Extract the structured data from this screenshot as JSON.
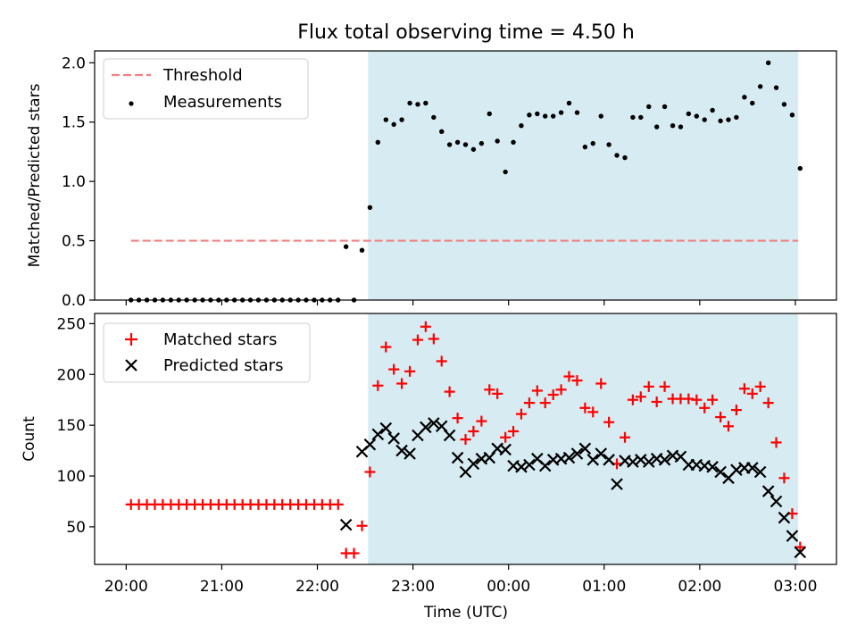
{
  "figure": {
    "title": "Flux total observing time = 4.50 h"
  },
  "chart_data": [
    {
      "type": "scatter",
      "ylabel": "Matched/Predicted stars",
      "xlabel": "",
      "xlim_hours": [
        19.67,
        27.43
      ],
      "ylim": [
        0,
        2.1
      ],
      "yticks": [
        0.0,
        0.5,
        1.0,
        1.5,
        2.0
      ],
      "ytick_labels": [
        "0.0",
        "0.5",
        "1.0",
        "1.5",
        "2.0"
      ],
      "shaded_span_hours": [
        22.53,
        27.03
      ],
      "shade_color": "#add8e6",
      "legend": {
        "placement": "upper-left",
        "entries": [
          {
            "label": "Threshold",
            "style": "dashed-line",
            "color": "#f08080"
          },
          {
            "label": "Measurements",
            "style": "dot",
            "color": "#000000"
          }
        ]
      },
      "threshold": {
        "name": "Threshold",
        "y": 0.5,
        "x_start": 20.05,
        "x_end": 27.03,
        "color": "#f08080"
      },
      "series": [
        {
          "name": "Measurements",
          "marker": "dot",
          "color": "#000000",
          "x": [
            20.05,
            20.133,
            20.217,
            20.3,
            20.383,
            20.467,
            20.55,
            20.633,
            20.717,
            20.8,
            20.883,
            20.967,
            21.05,
            21.133,
            21.217,
            21.3,
            21.383,
            21.467,
            21.55,
            21.633,
            21.717,
            21.8,
            21.883,
            21.967,
            22.05,
            22.133,
            22.217,
            22.3,
            22.383,
            22.467,
            22.55,
            22.633,
            22.717,
            22.8,
            22.883,
            22.967,
            23.05,
            23.133,
            23.217,
            23.3,
            23.383,
            23.467,
            23.55,
            23.633,
            23.717,
            23.8,
            23.883,
            23.967,
            24.05,
            24.133,
            24.217,
            24.3,
            24.383,
            24.467,
            24.55,
            24.633,
            24.717,
            24.8,
            24.883,
            24.967,
            25.05,
            25.133,
            25.217,
            25.3,
            25.383,
            25.467,
            25.55,
            25.633,
            25.717,
            25.8,
            25.883,
            25.967,
            26.05,
            26.133,
            26.217,
            26.3,
            26.383,
            26.467,
            26.55,
            26.633,
            26.717,
            26.8,
            26.883,
            26.967,
            27.05
          ],
          "y": [
            0.0,
            0.0,
            0.0,
            0.0,
            0.0,
            0.0,
            0.0,
            0.0,
            0.0,
            0.0,
            0.0,
            0.0,
            0.0,
            0.0,
            0.0,
            0.0,
            0.0,
            0.0,
            0.0,
            0.0,
            0.0,
            0.0,
            0.0,
            0.0,
            0.0,
            0.0,
            0.0,
            0.45,
            0.0,
            0.42,
            0.78,
            1.33,
            1.52,
            1.48,
            1.52,
            1.66,
            1.65,
            1.66,
            1.54,
            1.42,
            1.31,
            1.33,
            1.31,
            1.27,
            1.32,
            1.57,
            1.34,
            1.08,
            1.33,
            1.47,
            1.56,
            1.57,
            1.55,
            1.55,
            1.58,
            1.66,
            1.58,
            1.29,
            1.32,
            1.55,
            1.31,
            1.22,
            1.2,
            1.54,
            1.54,
            1.63,
            1.46,
            1.63,
            1.47,
            1.46,
            1.57,
            1.55,
            1.52,
            1.6,
            1.51,
            1.52,
            1.54,
            1.71,
            1.66,
            1.8,
            2.0,
            1.79,
            1.65,
            1.56,
            1.11
          ]
        }
      ]
    },
    {
      "type": "scatter",
      "ylabel": "Count",
      "xlabel": "Time (UTC)",
      "xlim_hours": [
        19.67,
        27.43
      ],
      "ylim": [
        13,
        260
      ],
      "yticks": [
        50,
        100,
        150,
        200,
        250
      ],
      "ytick_labels": [
        "50",
        "100",
        "150",
        "200",
        "250"
      ],
      "xticks_hours": [
        20,
        21,
        22,
        23,
        24,
        25,
        26,
        27
      ],
      "xtick_labels": [
        "20:00",
        "21:00",
        "22:00",
        "23:00",
        "00:00",
        "01:00",
        "02:00",
        "03:00"
      ],
      "shaded_span_hours": [
        22.53,
        27.03
      ],
      "shade_color": "#add8e6",
      "legend": {
        "placement": "upper-left",
        "entries": [
          {
            "label": "Matched stars",
            "style": "plus",
            "color": "#ff0000"
          },
          {
            "label": "Predicted stars",
            "style": "x",
            "color": "#000000"
          }
        ]
      },
      "series": [
        {
          "name": "Matched stars",
          "marker": "plus",
          "color": "#ff0000",
          "x": [
            20.05,
            20.133,
            20.217,
            20.3,
            20.383,
            20.467,
            20.55,
            20.633,
            20.717,
            20.8,
            20.883,
            20.967,
            21.05,
            21.133,
            21.217,
            21.3,
            21.383,
            21.467,
            21.55,
            21.633,
            21.717,
            21.8,
            21.883,
            21.967,
            22.05,
            22.133,
            22.217,
            22.3,
            22.383,
            22.467,
            22.55,
            22.633,
            22.717,
            22.8,
            22.883,
            22.967,
            23.05,
            23.133,
            23.217,
            23.3,
            23.383,
            23.467,
            23.55,
            23.633,
            23.717,
            23.8,
            23.883,
            23.967,
            24.05,
            24.133,
            24.217,
            24.3,
            24.383,
            24.467,
            24.55,
            24.633,
            24.717,
            24.8,
            24.883,
            24.967,
            25.05,
            25.133,
            25.217,
            25.3,
            25.383,
            25.467,
            25.55,
            25.633,
            25.717,
            25.8,
            25.883,
            25.967,
            26.05,
            26.133,
            26.217,
            26.3,
            26.383,
            26.467,
            26.55,
            26.633,
            26.717,
            26.8,
            26.883,
            26.967,
            27.05
          ],
          "y": [
            72,
            72,
            72,
            72,
            72,
            72,
            72,
            72,
            72,
            72,
            72,
            72,
            72,
            72,
            72,
            72,
            72,
            72,
            72,
            72,
            72,
            72,
            72,
            72,
            72,
            72,
            72,
            24,
            24,
            51,
            104,
            189,
            227,
            205,
            191,
            203,
            234,
            247,
            235,
            213,
            183,
            157,
            136,
            144,
            154,
            185,
            181,
            138,
            144,
            161,
            172,
            184,
            172,
            180,
            185,
            198,
            194,
            167,
            163,
            191,
            153,
            112,
            138,
            175,
            178,
            188,
            173,
            188,
            176,
            176,
            176,
            175,
            167,
            175,
            158,
            149,
            165,
            186,
            181,
            188,
            172,
            133,
            98,
            63,
            30
          ]
        },
        {
          "name": "Predicted stars",
          "marker": "x",
          "color": "#000000",
          "x": [
            22.3,
            22.467,
            22.55,
            22.633,
            22.717,
            22.8,
            22.883,
            22.967,
            23.05,
            23.133,
            23.217,
            23.3,
            23.383,
            23.467,
            23.55,
            23.633,
            23.717,
            23.8,
            23.883,
            23.967,
            24.05,
            24.133,
            24.217,
            24.3,
            24.383,
            24.467,
            24.55,
            24.633,
            24.717,
            24.8,
            24.883,
            24.967,
            25.05,
            25.133,
            25.217,
            25.3,
            25.383,
            25.467,
            25.55,
            25.633,
            25.717,
            25.8,
            25.883,
            25.967,
            26.05,
            26.133,
            26.217,
            26.3,
            26.383,
            26.467,
            26.55,
            26.633,
            26.717,
            26.8,
            26.883,
            26.967,
            27.05
          ],
          "y": [
            52,
            124,
            131,
            141,
            147,
            137,
            125,
            122,
            140,
            148,
            152,
            149,
            140,
            118,
            104,
            112,
            117,
            118,
            127,
            126,
            110,
            109,
            111,
            117,
            110,
            116,
            117,
            118,
            122,
            127,
            116,
            122,
            116,
            92,
            115,
            114,
            116,
            114,
            117,
            116,
            120,
            119,
            111,
            111,
            110,
            109,
            104,
            98,
            106,
            108,
            108,
            104,
            85,
            75,
            59,
            41,
            25
          ]
        }
      ]
    }
  ]
}
